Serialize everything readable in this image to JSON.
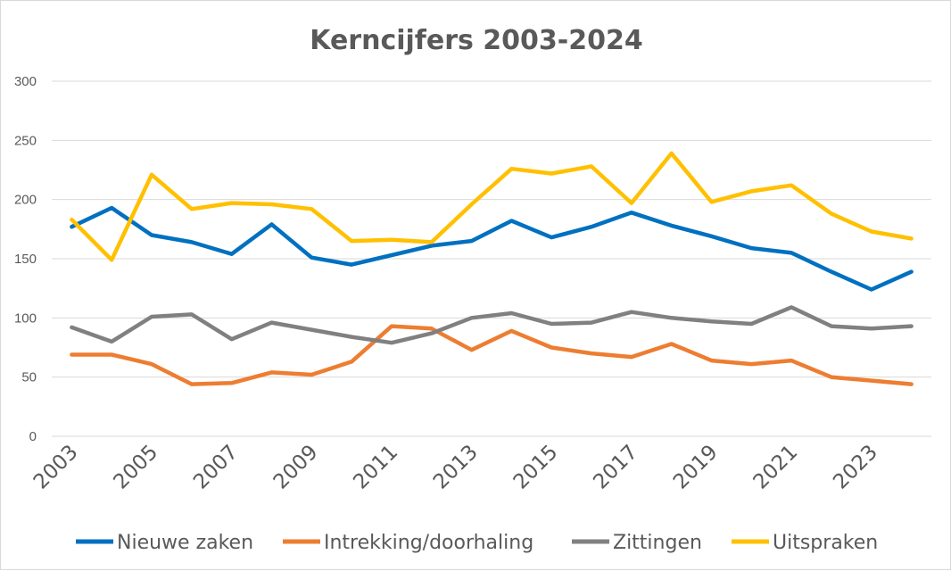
{
  "chart_data": {
    "type": "line",
    "title": "Kerncijfers 2003-2024",
    "xlabel": "",
    "ylabel": "",
    "ylim": [
      0,
      300
    ],
    "yticks": [
      0,
      50,
      100,
      150,
      200,
      250,
      300
    ],
    "xtick_labels": [
      "2003",
      "2005",
      "2007",
      "2009",
      "2011",
      "2013",
      "2015",
      "2017",
      "2019",
      "2021",
      "2023"
    ],
    "grid": true,
    "legend_position": "bottom",
    "x": [
      2003,
      2004,
      2005,
      2006,
      2007,
      2008,
      2009,
      2010,
      2011,
      2012,
      2013,
      2014,
      2015,
      2016,
      2017,
      2018,
      2019,
      2020,
      2021,
      2022,
      2023,
      2024
    ],
    "series": [
      {
        "name": "Nieuwe zaken",
        "color": "#0070c0",
        "values": [
          177,
          193,
          170,
          164,
          154,
          179,
          151,
          145,
          153,
          161,
          165,
          182,
          168,
          177,
          189,
          178,
          169,
          159,
          155,
          139,
          124,
          139
        ]
      },
      {
        "name": "Intrekking/doorhaling",
        "color": "#ed7d31",
        "values": [
          69,
          69,
          61,
          44,
          45,
          54,
          52,
          63,
          93,
          91,
          73,
          89,
          75,
          70,
          67,
          78,
          64,
          61,
          64,
          50,
          47,
          44
        ]
      },
      {
        "name": "Zittingen",
        "color": "#808080",
        "values": [
          92,
          80,
          101,
          103,
          82,
          96,
          90,
          84,
          79,
          87,
          100,
          104,
          95,
          96,
          105,
          100,
          97,
          95,
          109,
          93,
          91,
          93
        ]
      },
      {
        "name": "Uitspraken",
        "color": "#ffc000",
        "values": [
          183,
          149,
          221,
          192,
          197,
          196,
          192,
          165,
          166,
          164,
          196,
          226,
          222,
          228,
          197,
          239,
          198,
          207,
          212,
          188,
          173,
          167
        ]
      }
    ]
  }
}
